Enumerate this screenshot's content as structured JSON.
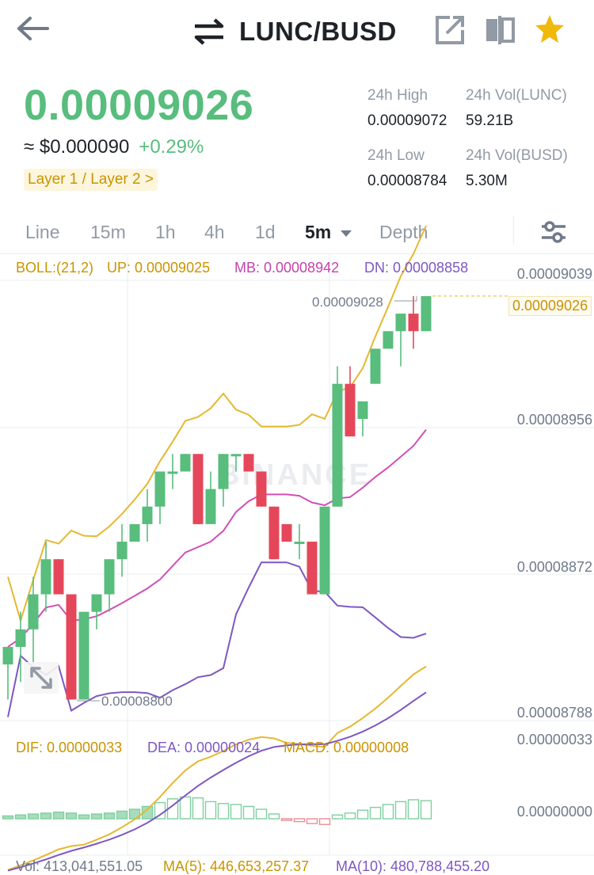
{
  "header": {
    "title": "LUNC/BUSD",
    "icons": [
      "back-arrow-icon",
      "swap-icon",
      "share-icon",
      "split-view-icon",
      "star-icon"
    ],
    "accent": "#f0b90b"
  },
  "price": {
    "last": "0.00009026",
    "fiat": "≈ $0.000090",
    "change": "+0.29%",
    "tag": "Layer 1 / Layer 2 >",
    "up_color": "#58bd7d",
    "down_color": "#e5475a"
  },
  "stats": {
    "high_label": "24h High",
    "high_value": "0.00009072",
    "low_label": "24h Low",
    "low_value": "0.00008784",
    "vol_lunc_label": "24h Vol(LUNC)",
    "vol_lunc_value": "59.21B",
    "vol_busd_label": "24h Vol(BUSD)",
    "vol_busd_value": "5.30M"
  },
  "tabs": [
    {
      "label": "Line"
    },
    {
      "label": "15m"
    },
    {
      "label": "1h"
    },
    {
      "label": "4h"
    },
    {
      "label": "1d"
    },
    {
      "label": "5m",
      "active": true
    },
    {
      "label": "Depth"
    }
  ],
  "boll": {
    "name": "BOLL:(21,2)",
    "up": "UP: 0.00009025",
    "mb": "MB: 0.00008942",
    "dn": "DN: 0.00008858"
  },
  "chart_axis": {
    "labels": [
      "0.00009039",
      "0.00008956",
      "0.00008872",
      "0.00008788"
    ],
    "current_price": "0.00009026",
    "max_mark": "0.00009028",
    "min_mark": "0.00008800",
    "watermark": "BINANCE"
  },
  "macd": {
    "dif": "DIF: 0.00000033",
    "dea": "DEA: 0.00000024",
    "macd": "MACD: 0.00000008",
    "axis_top": "0.00000033",
    "axis_zero": "0.00000000"
  },
  "volume": {
    "vol": "Vol: 413,041,551.05",
    "ma5": "MA(5): 446,653,257.37",
    "ma10": "MA(10): 480,788,455.20"
  },
  "chart_data": {
    "type": "candlestick",
    "price_scale": {
      "grid_labels": [
        9.039e-05,
        8.956e-05,
        8.872e-05,
        8.788e-05
      ]
    },
    "candles": [
      {
        "o": 8.82e-05,
        "h": 8.83e-05,
        "l": 8.8e-05,
        "c": 8.83e-05
      },
      {
        "o": 8.83e-05,
        "h": 8.85e-05,
        "l": 8.81e-05,
        "c": 8.84e-05
      },
      {
        "o": 8.84e-05,
        "h": 8.87e-05,
        "l": 8.82e-05,
        "c": 8.86e-05
      },
      {
        "o": 8.86e-05,
        "h": 8.89e-05,
        "l": 8.85e-05,
        "c": 8.88e-05
      },
      {
        "o": 8.88e-05,
        "h": 8.88e-05,
        "l": 8.86e-05,
        "c": 8.86e-05
      },
      {
        "o": 8.86e-05,
        "h": 8.86e-05,
        "l": 8.8e-05,
        "c": 8.8e-05
      },
      {
        "o": 8.8e-05,
        "h": 8.85e-05,
        "l": 8.8e-05,
        "c": 8.85e-05
      },
      {
        "o": 8.85e-05,
        "h": 8.86e-05,
        "l": 8.84e-05,
        "c": 8.86e-05
      },
      {
        "o": 8.86e-05,
        "h": 8.88e-05,
        "l": 8.85e-05,
        "c": 8.88e-05
      },
      {
        "o": 8.88e-05,
        "h": 8.9e-05,
        "l": 8.87e-05,
        "c": 8.89e-05
      },
      {
        "o": 8.89e-05,
        "h": 8.9e-05,
        "l": 8.89e-05,
        "c": 8.9e-05
      },
      {
        "o": 8.9e-05,
        "h": 8.92e-05,
        "l": 8.89e-05,
        "c": 8.91e-05
      },
      {
        "o": 8.91e-05,
        "h": 8.93e-05,
        "l": 8.9e-05,
        "c": 8.93e-05
      },
      {
        "o": 8.93e-05,
        "h": 8.94e-05,
        "l": 8.92e-05,
        "c": 8.93e-05
      },
      {
        "o": 8.93e-05,
        "h": 8.94e-05,
        "l": 8.93e-05,
        "c": 8.94e-05
      },
      {
        "o": 8.94e-05,
        "h": 8.94e-05,
        "l": 8.9e-05,
        "c": 8.9e-05
      },
      {
        "o": 8.9e-05,
        "h": 8.93e-05,
        "l": 8.9e-05,
        "c": 8.92e-05
      },
      {
        "o": 8.92e-05,
        "h": 8.94e-05,
        "l": 8.91e-05,
        "c": 8.94e-05
      },
      {
        "o": 8.94e-05,
        "h": 8.94e-05,
        "l": 8.93e-05,
        "c": 8.94e-05
      },
      {
        "o": 8.94e-05,
        "h": 8.94e-05,
        "l": 8.93e-05,
        "c": 8.93e-05
      },
      {
        "o": 8.93e-05,
        "h": 8.93e-05,
        "l": 8.91e-05,
        "c": 8.91e-05
      },
      {
        "o": 8.91e-05,
        "h": 8.91e-05,
        "l": 8.88e-05,
        "c": 8.88e-05
      },
      {
        "o": 8.9e-05,
        "h": 8.9e-05,
        "l": 8.89e-05,
        "c": 8.89e-05
      },
      {
        "o": 8.89e-05,
        "h": 8.9e-05,
        "l": 8.88e-05,
        "c": 8.89e-05
      },
      {
        "o": 8.89e-05,
        "h": 8.89e-05,
        "l": 8.86e-05,
        "c": 8.86e-05
      },
      {
        "o": 8.86e-05,
        "h": 8.91e-05,
        "l": 8.86e-05,
        "c": 8.91e-05
      },
      {
        "o": 8.91e-05,
        "h": 8.99e-05,
        "l": 8.91e-05,
        "c": 8.98e-05
      },
      {
        "o": 8.98e-05,
        "h": 8.99e-05,
        "l": 8.95e-05,
        "c": 8.95e-05
      },
      {
        "o": 8.96e-05,
        "h": 8.97e-05,
        "l": 8.95e-05,
        "c": 8.97e-05
      },
      {
        "o": 8.98e-05,
        "h": 9e-05,
        "l": 8.98e-05,
        "c": 9e-05
      },
      {
        "o": 9e-05,
        "h": 9.01e-05,
        "l": 9e-05,
        "c": 9.01e-05
      },
      {
        "o": 9.01e-05,
        "h": 9.02e-05,
        "l": 8.99e-05,
        "c": 9.02e-05
      },
      {
        "o": 9.02e-05,
        "h": 9.03e-05,
        "l": 9e-05,
        "c": 9.01e-05
      },
      {
        "o": 9.01e-05,
        "h": 9.03e-05,
        "l": 9.01e-05,
        "c": 9.03e-05
      }
    ],
    "macd_hist": [
      0.03,
      0.04,
      0.05,
      0.06,
      0.07,
      0.06,
      0.04,
      0.05,
      0.06,
      0.08,
      0.1,
      0.13,
      0.17,
      0.21,
      0.23,
      0.22,
      0.18,
      0.16,
      0.15,
      0.13,
      0.1,
      0.05,
      -0.01,
      -0.03,
      -0.05,
      -0.06,
      0.04,
      0.06,
      0.09,
      0.12,
      0.15,
      0.18,
      0.2,
      0.19
    ],
    "series": [
      {
        "name": "UP"
      },
      {
        "name": "MB"
      },
      {
        "name": "DN"
      },
      {
        "name": "DIF"
      },
      {
        "name": "DEA"
      }
    ]
  }
}
